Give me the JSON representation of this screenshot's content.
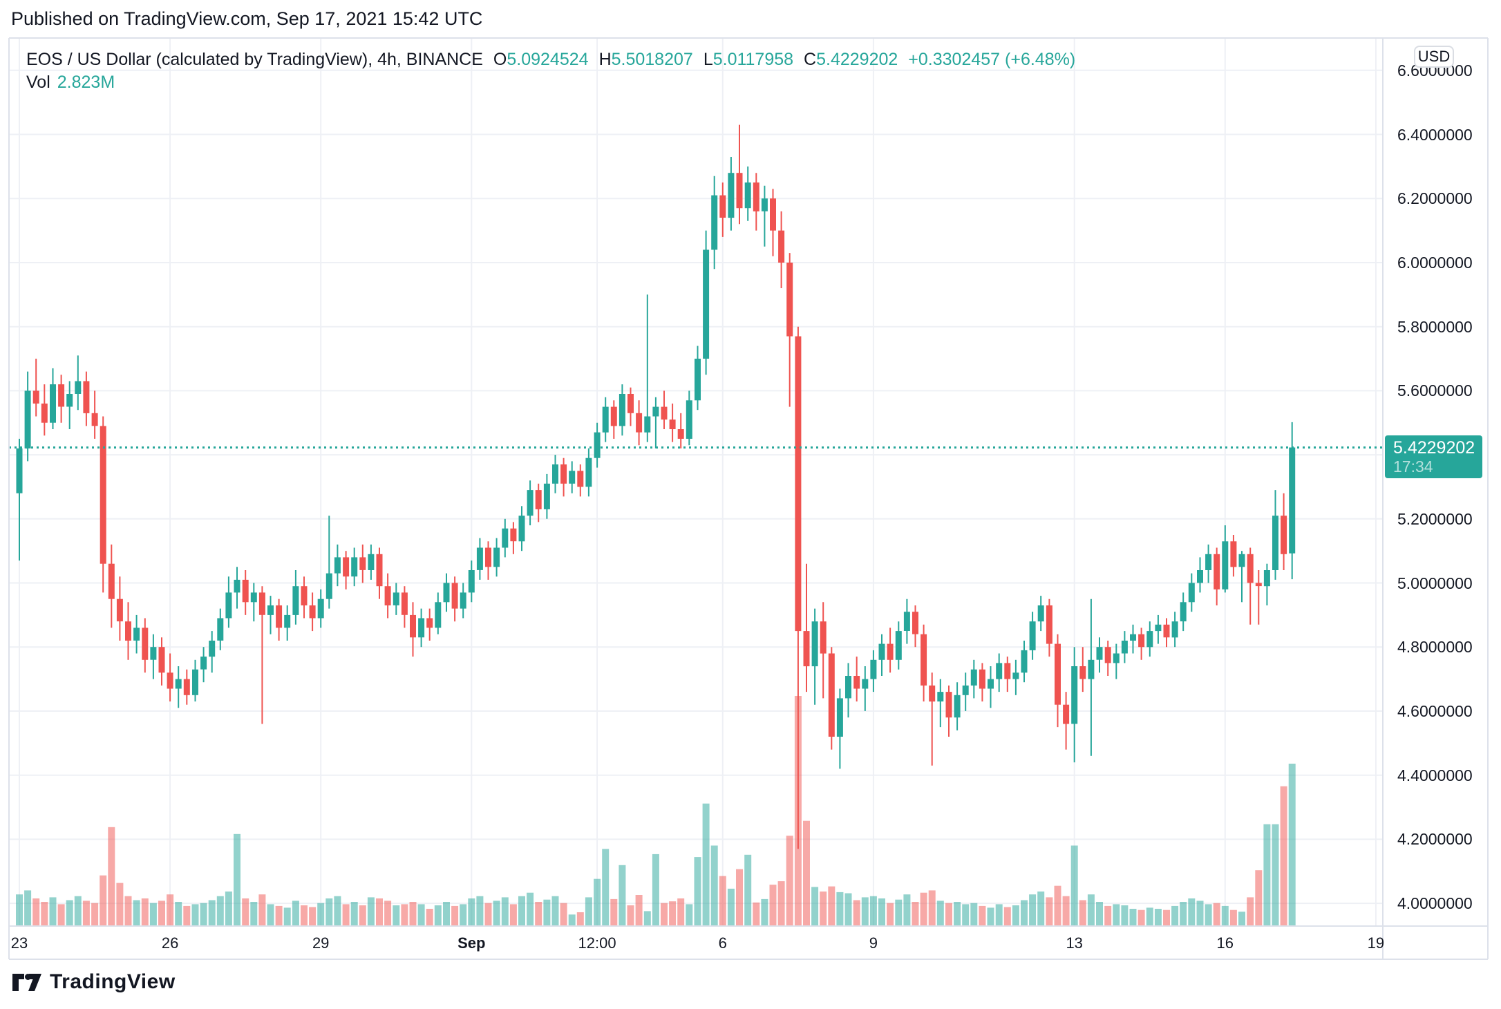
{
  "published_line": "Published on TradingView.com, Sep 17, 2021 15:42 UTC",
  "legend": {
    "title": "EOS / US Dollar (calculated by TradingView), 4h, BINANCE",
    "o_label": "O",
    "o_value": "5.0924524",
    "h_label": "H",
    "h_value": "5.5018207",
    "l_label": "L",
    "l_value": "5.0117958",
    "c_label": "C",
    "c_value": "5.4229202",
    "change": "+0.3302457 (+6.48%)",
    "vol_label": "Vol",
    "vol_value": "2.823M"
  },
  "axis": {
    "currency": "USD"
  },
  "last_price_badge": {
    "price": "5.4229202",
    "countdown": "17:34"
  },
  "footer": {
    "brand": "TradingView"
  },
  "colors": {
    "up": "#26a69a",
    "down": "#ef5350",
    "vol_up": "rgba(38,166,154,0.5)",
    "vol_down": "rgba(239,83,80,0.5)",
    "grid": "#eef0f5",
    "border": "#dde1ea",
    "text": "#131722",
    "badge_bg": "#26a69a",
    "last_line": "#26a69a",
    "background": "#ffffff"
  },
  "chart_data": {
    "type": "candlestick",
    "title": "EOS / US Dollar (calculated by TradingView), 4h, BINANCE",
    "symbol": "EOSUSD",
    "exchange": "BINANCE",
    "interval": "4h",
    "grid": true,
    "legend_position": "top-left",
    "price_axis": {
      "range": [
        3.929,
        6.701
      ],
      "ticks": [
        {
          "value": 6.6,
          "label": "6.6000000"
        },
        {
          "value": 6.4,
          "label": "6.4000000"
        },
        {
          "value": 6.2,
          "label": "6.2000000"
        },
        {
          "value": 6.0,
          "label": "6.0000000"
        },
        {
          "value": 5.8,
          "label": "5.8000000"
        },
        {
          "value": 5.6,
          "label": "5.6000000"
        },
        {
          "value": 5.4,
          "label": "5.4000000"
        },
        {
          "value": 5.2,
          "label": "5.2000000"
        },
        {
          "value": 5.0,
          "label": "5.0000000"
        },
        {
          "value": 4.8,
          "label": "4.8000000"
        },
        {
          "value": 4.6,
          "label": "4.6000000"
        },
        {
          "value": 4.4,
          "label": "4.4000000"
        },
        {
          "value": 4.2,
          "label": "4.2000000"
        },
        {
          "value": 4.0,
          "label": "4.0000000"
        }
      ]
    },
    "time_axis": {
      "start": "Aug 23 2021 00:00 UTC",
      "candles_per_day": 6,
      "ticks": [
        {
          "label": "23",
          "d": 0
        },
        {
          "label": "26",
          "d": 3
        },
        {
          "label": "29",
          "d": 6
        },
        {
          "label": "Sep",
          "d": 9,
          "bold": true
        },
        {
          "label": "12:00",
          "d": 11.5
        },
        {
          "label": "6",
          "d": 14
        },
        {
          "label": "9",
          "d": 17
        },
        {
          "label": "13",
          "d": 21
        },
        {
          "label": "16",
          "d": 24
        },
        {
          "label": "19",
          "d": 27
        }
      ]
    },
    "last": {
      "value": 5.4229202,
      "countdown": "17:34",
      "direction": "up",
      "volume_millions": 2.823
    },
    "candles_format": [
      "open",
      "high",
      "low",
      "close",
      "volume_millions"
    ],
    "candles": [
      [
        5.28,
        5.45,
        5.07,
        5.42,
        0.55
      ],
      [
        5.42,
        5.66,
        5.38,
        5.6,
        0.62
      ],
      [
        5.6,
        5.7,
        5.52,
        5.56,
        0.48
      ],
      [
        5.56,
        5.62,
        5.46,
        5.5,
        0.42
      ],
      [
        5.5,
        5.67,
        5.48,
        5.62,
        0.5
      ],
      [
        5.62,
        5.65,
        5.5,
        5.55,
        0.38
      ],
      [
        5.55,
        5.63,
        5.48,
        5.59,
        0.45
      ],
      [
        5.59,
        5.71,
        5.54,
        5.63,
        0.52
      ],
      [
        5.63,
        5.66,
        5.49,
        5.53,
        0.44
      ],
      [
        5.53,
        5.6,
        5.45,
        5.49,
        0.4
      ],
      [
        5.49,
        5.52,
        4.97,
        5.06,
        0.88
      ],
      [
        5.06,
        5.12,
        4.86,
        4.95,
        1.72
      ],
      [
        4.95,
        5.02,
        4.82,
        4.88,
        0.75
      ],
      [
        4.88,
        4.94,
        4.76,
        4.82,
        0.52
      ],
      [
        4.82,
        4.9,
        4.78,
        4.86,
        0.45
      ],
      [
        4.86,
        4.89,
        4.72,
        4.76,
        0.48
      ],
      [
        4.76,
        4.84,
        4.7,
        4.8,
        0.4
      ],
      [
        4.8,
        4.83,
        4.68,
        4.72,
        0.44
      ],
      [
        4.72,
        4.78,
        4.63,
        4.67,
        0.55
      ],
      [
        4.67,
        4.74,
        4.61,
        4.7,
        0.42
      ],
      [
        4.7,
        4.73,
        4.62,
        4.65,
        0.35
      ],
      [
        4.65,
        4.76,
        4.63,
        4.73,
        0.38
      ],
      [
        4.73,
        4.8,
        4.69,
        4.77,
        0.4
      ],
      [
        4.77,
        4.85,
        4.72,
        4.82,
        0.45
      ],
      [
        4.82,
        4.92,
        4.79,
        4.89,
        0.52
      ],
      [
        4.89,
        5.02,
        4.86,
        4.97,
        0.6
      ],
      [
        4.97,
        5.05,
        4.92,
        5.01,
        1.6
      ],
      [
        5.01,
        5.04,
        4.9,
        4.94,
        0.48
      ],
      [
        4.94,
        5.0,
        4.88,
        4.97,
        0.42
      ],
      [
        4.97,
        4.99,
        4.56,
        4.9,
        0.55
      ],
      [
        4.9,
        4.96,
        4.84,
        4.93,
        0.38
      ],
      [
        4.93,
        4.95,
        4.82,
        4.86,
        0.35
      ],
      [
        4.86,
        4.93,
        4.82,
        4.9,
        0.32
      ],
      [
        4.9,
        5.04,
        4.87,
        4.99,
        0.44
      ],
      [
        4.99,
        5.02,
        4.89,
        4.93,
        0.36
      ],
      [
        4.93,
        4.97,
        4.85,
        4.89,
        0.33
      ],
      [
        4.89,
        4.98,
        4.86,
        4.95,
        0.4
      ],
      [
        4.95,
        5.21,
        4.92,
        5.03,
        0.48
      ],
      [
        5.03,
        5.12,
        4.99,
        5.08,
        0.52
      ],
      [
        5.08,
        5.1,
        4.98,
        5.02,
        0.38
      ],
      [
        5.02,
        5.11,
        4.99,
        5.08,
        0.42
      ],
      [
        5.08,
        5.12,
        5.0,
        5.04,
        0.36
      ],
      [
        5.04,
        5.12,
        5.01,
        5.09,
        0.5
      ],
      [
        5.09,
        5.11,
        4.95,
        4.99,
        0.48
      ],
      [
        4.99,
        5.03,
        4.89,
        4.93,
        0.44
      ],
      [
        4.93,
        5.0,
        4.9,
        4.97,
        0.36
      ],
      [
        4.97,
        4.99,
        4.86,
        4.9,
        0.38
      ],
      [
        4.9,
        4.94,
        4.77,
        4.83,
        0.42
      ],
      [
        4.83,
        4.92,
        4.8,
        4.89,
        0.38
      ],
      [
        4.89,
        4.92,
        4.82,
        4.86,
        0.3
      ],
      [
        4.86,
        4.97,
        4.84,
        4.94,
        0.36
      ],
      [
        4.94,
        5.03,
        4.91,
        5.0,
        0.42
      ],
      [
        5.0,
        5.02,
        4.88,
        4.92,
        0.35
      ],
      [
        4.92,
        5.0,
        4.89,
        4.97,
        0.38
      ],
      [
        4.97,
        5.07,
        4.94,
        5.04,
        0.48
      ],
      [
        5.04,
        5.14,
        5.01,
        5.11,
        0.52
      ],
      [
        5.11,
        5.13,
        5.01,
        5.05,
        0.4
      ],
      [
        5.05,
        5.14,
        5.02,
        5.11,
        0.44
      ],
      [
        5.11,
        5.2,
        5.08,
        5.17,
        0.5
      ],
      [
        5.17,
        5.19,
        5.09,
        5.13,
        0.38
      ],
      [
        5.13,
        5.24,
        5.1,
        5.21,
        0.52
      ],
      [
        5.21,
        5.32,
        5.18,
        5.29,
        0.58
      ],
      [
        5.29,
        5.31,
        5.19,
        5.23,
        0.42
      ],
      [
        5.23,
        5.34,
        5.2,
        5.31,
        0.46
      ],
      [
        5.31,
        5.4,
        5.28,
        5.37,
        0.52
      ],
      [
        5.37,
        5.39,
        5.27,
        5.31,
        0.4
      ],
      [
        5.31,
        5.38,
        5.28,
        5.35,
        0.2
      ],
      [
        5.35,
        5.37,
        5.27,
        5.3,
        0.24
      ],
      [
        5.3,
        5.42,
        5.27,
        5.39,
        0.5
      ],
      [
        5.39,
        5.5,
        5.36,
        5.47,
        0.82
      ],
      [
        5.47,
        5.58,
        5.44,
        5.55,
        1.34
      ],
      [
        5.55,
        5.57,
        5.45,
        5.49,
        0.47
      ],
      [
        5.49,
        5.62,
        5.46,
        5.59,
        1.06
      ],
      [
        5.59,
        5.61,
        5.49,
        5.53,
        0.36
      ],
      [
        5.53,
        5.57,
        5.43,
        5.47,
        0.54
      ],
      [
        5.47,
        5.9,
        5.44,
        5.52,
        0.26
      ],
      [
        5.52,
        5.58,
        5.42,
        5.55,
        1.25
      ],
      [
        5.55,
        5.6,
        5.48,
        5.51,
        0.4
      ],
      [
        5.51,
        5.56,
        5.44,
        5.48,
        0.43
      ],
      [
        5.48,
        5.53,
        5.42,
        5.45,
        0.48
      ],
      [
        5.45,
        5.6,
        5.43,
        5.57,
        0.38
      ],
      [
        5.57,
        5.74,
        5.54,
        5.7,
        1.2
      ],
      [
        5.7,
        6.1,
        5.65,
        6.04,
        2.13
      ],
      [
        6.04,
        6.27,
        5.98,
        6.21,
        1.4
      ],
      [
        6.21,
        6.25,
        6.08,
        6.14,
        0.87
      ],
      [
        6.14,
        6.33,
        6.1,
        6.28,
        0.65
      ],
      [
        6.28,
        6.43,
        6.12,
        6.17,
        0.99
      ],
      [
        6.17,
        6.3,
        6.13,
        6.25,
        1.24
      ],
      [
        6.25,
        6.28,
        6.1,
        6.16,
        0.41
      ],
      [
        6.16,
        6.24,
        6.05,
        6.2,
        0.47
      ],
      [
        6.2,
        6.23,
        6.02,
        6.1,
        0.72
      ],
      [
        6.1,
        6.16,
        5.92,
        6.0,
        0.78
      ],
      [
        6.0,
        6.03,
        5.55,
        5.77,
        1.57
      ],
      [
        5.77,
        5.8,
        4.17,
        4.85,
        4.0
      ],
      [
        4.85,
        5.06,
        4.66,
        4.74,
        1.83
      ],
      [
        4.74,
        4.92,
        4.62,
        4.88,
        0.68
      ],
      [
        4.88,
        4.94,
        4.64,
        4.78,
        0.6
      ],
      [
        4.78,
        4.8,
        4.48,
        4.52,
        0.69
      ],
      [
        4.52,
        4.67,
        4.42,
        4.64,
        0.59
      ],
      [
        4.64,
        4.75,
        4.58,
        4.71,
        0.57
      ],
      [
        4.71,
        4.77,
        4.63,
        4.67,
        0.45
      ],
      [
        4.67,
        4.74,
        4.6,
        4.7,
        0.5
      ],
      [
        4.7,
        4.79,
        4.66,
        4.76,
        0.52
      ],
      [
        4.76,
        4.84,
        4.71,
        4.81,
        0.48
      ],
      [
        4.81,
        4.86,
        4.72,
        4.76,
        0.4
      ],
      [
        4.76,
        4.88,
        4.73,
        4.85,
        0.46
      ],
      [
        4.85,
        4.95,
        4.81,
        4.91,
        0.55
      ],
      [
        4.91,
        4.93,
        4.8,
        4.84,
        0.42
      ],
      [
        4.84,
        4.87,
        4.63,
        4.68,
        0.58
      ],
      [
        4.68,
        4.72,
        4.43,
        4.63,
        0.62
      ],
      [
        4.63,
        4.7,
        4.55,
        4.66,
        0.44
      ],
      [
        4.66,
        4.68,
        4.52,
        4.58,
        0.4
      ],
      [
        4.58,
        4.69,
        4.54,
        4.65,
        0.42
      ],
      [
        4.65,
        4.72,
        4.6,
        4.68,
        0.38
      ],
      [
        4.68,
        4.76,
        4.64,
        4.73,
        0.4
      ],
      [
        4.73,
        4.75,
        4.63,
        4.67,
        0.35
      ],
      [
        4.67,
        4.74,
        4.61,
        4.7,
        0.32
      ],
      [
        4.7,
        4.78,
        4.66,
        4.75,
        0.38
      ],
      [
        4.75,
        4.77,
        4.66,
        4.7,
        0.33
      ],
      [
        4.7,
        4.76,
        4.65,
        4.72,
        0.36
      ],
      [
        4.72,
        4.82,
        4.69,
        4.79,
        0.45
      ],
      [
        4.79,
        4.91,
        4.76,
        4.88,
        0.55
      ],
      [
        4.88,
        4.96,
        4.85,
        4.93,
        0.6
      ],
      [
        4.93,
        4.95,
        4.77,
        4.81,
        0.5
      ],
      [
        4.81,
        4.84,
        4.55,
        4.62,
        0.7
      ],
      [
        4.62,
        4.66,
        4.48,
        4.56,
        0.52
      ],
      [
        4.56,
        4.8,
        4.44,
        4.74,
        1.4
      ],
      [
        4.74,
        4.8,
        4.66,
        4.7,
        0.45
      ],
      [
        4.7,
        4.95,
        4.46,
        4.76,
        0.55
      ],
      [
        4.76,
        4.83,
        4.72,
        4.8,
        0.42
      ],
      [
        4.8,
        4.82,
        4.71,
        4.75,
        0.35
      ],
      [
        4.75,
        4.81,
        4.7,
        4.78,
        0.38
      ],
      [
        4.78,
        4.85,
        4.75,
        4.82,
        0.36
      ],
      [
        4.82,
        4.87,
        4.78,
        4.84,
        0.3
      ],
      [
        4.84,
        4.86,
        4.76,
        4.8,
        0.28
      ],
      [
        4.8,
        4.88,
        4.77,
        4.85,
        0.32
      ],
      [
        4.85,
        4.9,
        4.81,
        4.87,
        0.3
      ],
      [
        4.87,
        4.89,
        4.8,
        4.83,
        0.28
      ],
      [
        4.83,
        4.91,
        4.8,
        4.88,
        0.35
      ],
      [
        4.88,
        4.97,
        4.85,
        4.94,
        0.42
      ],
      [
        4.94,
        5.03,
        4.91,
        5.0,
        0.48
      ],
      [
        5.0,
        5.08,
        4.97,
        5.04,
        0.44
      ],
      [
        5.04,
        5.12,
        5.0,
        5.09,
        0.38
      ],
      [
        5.09,
        5.11,
        4.93,
        4.98,
        0.4
      ],
      [
        4.98,
        5.18,
        4.97,
        5.13,
        0.35
      ],
      [
        5.13,
        5.15,
        5.02,
        5.05,
        0.28
      ],
      [
        5.05,
        5.1,
        4.94,
        5.09,
        0.25
      ],
      [
        5.09,
        5.11,
        4.87,
        5.0,
        0.5
      ],
      [
        5.0,
        5.04,
        4.87,
        4.99,
        0.97
      ],
      [
        4.99,
        5.06,
        4.93,
        5.04,
        1.77
      ],
      [
        5.04,
        5.29,
        5.01,
        5.21,
        1.77
      ],
      [
        5.21,
        5.28,
        5.04,
        5.09,
        2.43
      ],
      [
        5.0924524,
        5.5018207,
        5.0117958,
        5.4229202,
        2.823
      ]
    ]
  }
}
